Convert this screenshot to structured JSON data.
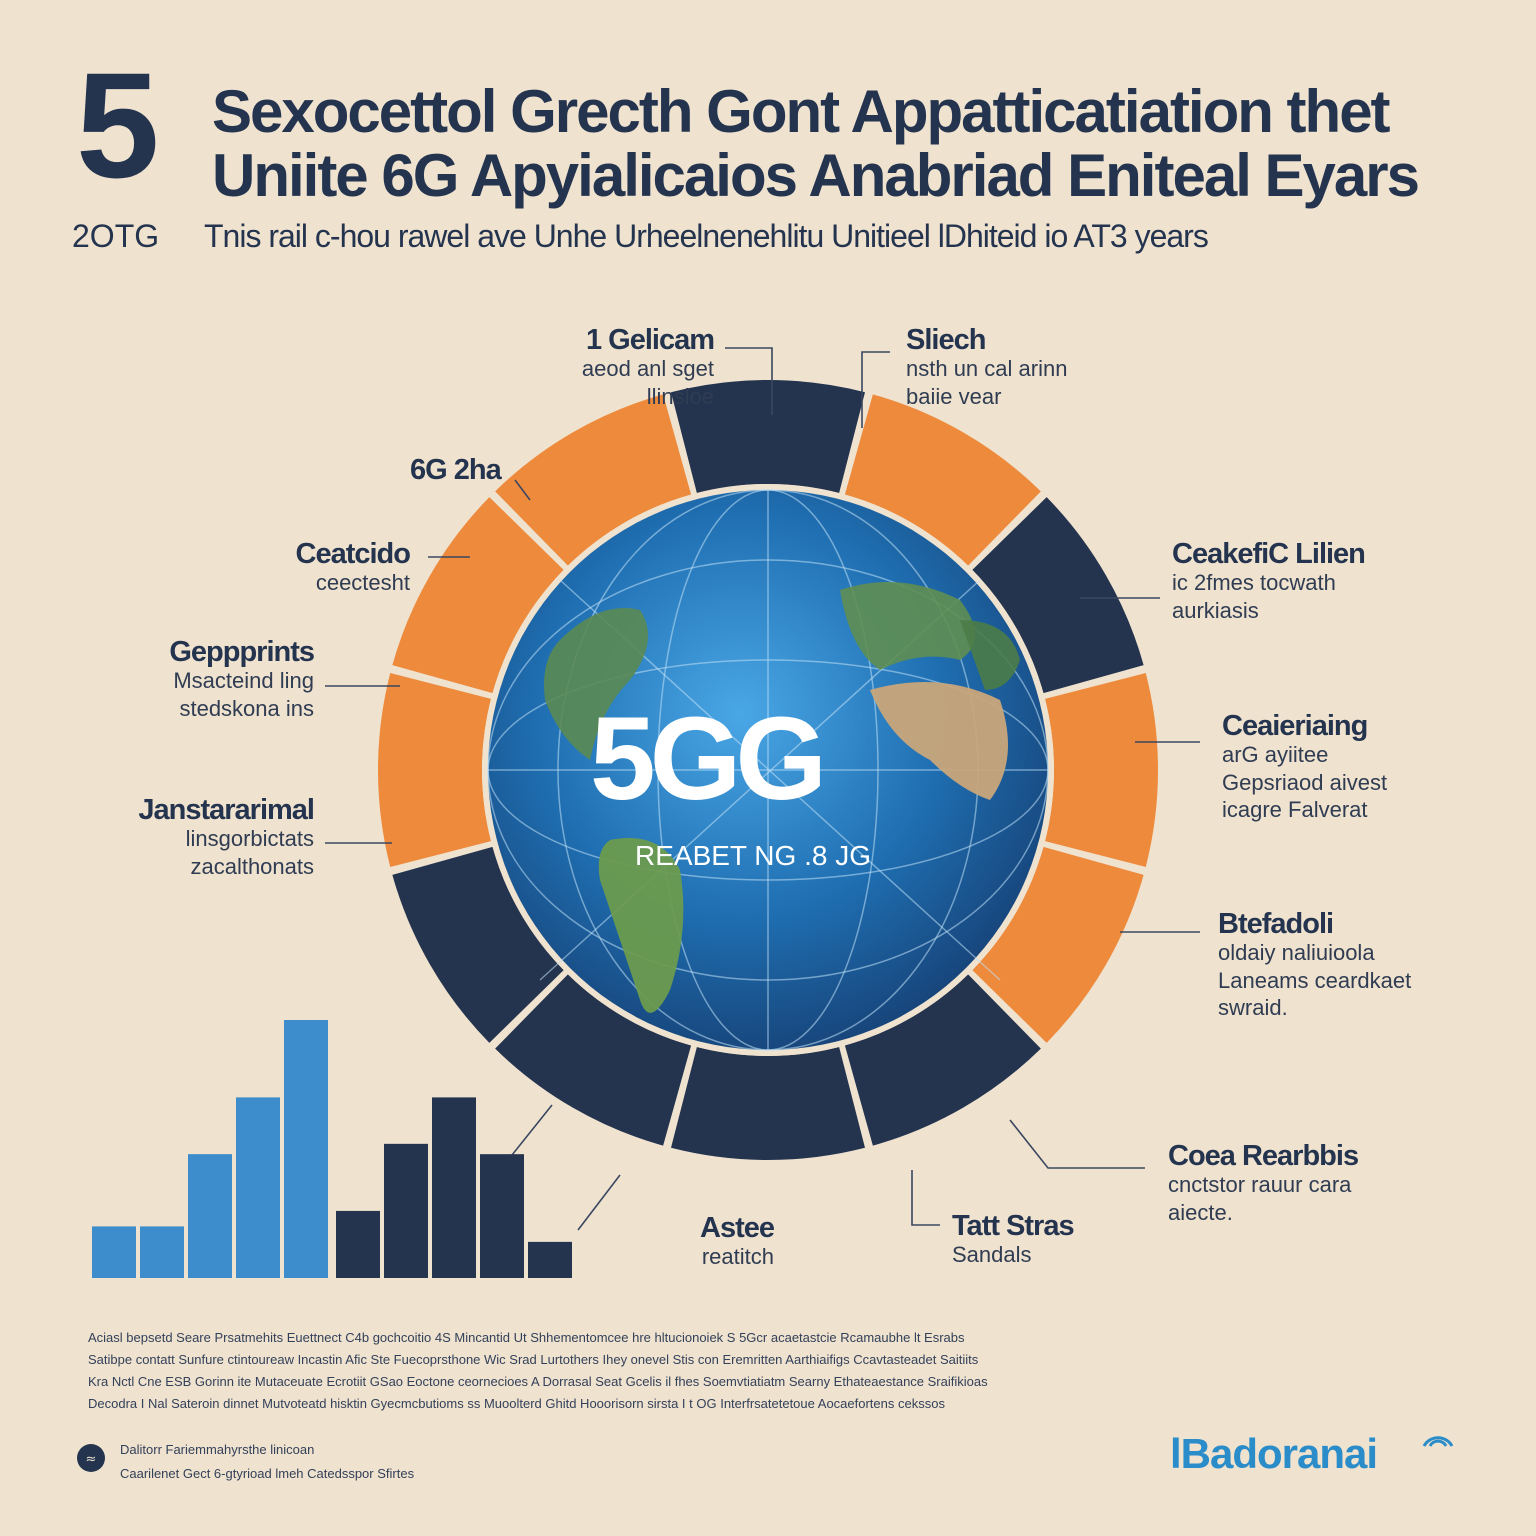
{
  "header": {
    "big_number": "5",
    "title_line1": "Sexocettol Grecth Gont Appatticatiation thet",
    "title_line2": "Uniite 6G Apyialicaios Anabriad Eniteal Eyars",
    "year_label": "2OTG",
    "subtitle": "Tnis rail c-hou rawel ave Unhe Urheelnenehlitu Unitieel lDhiteid io AT3 years"
  },
  "center": {
    "main_label": "5GG",
    "sub_label": "REABET NG .8 JG"
  },
  "segments": [
    {
      "head": "1 Gelicam",
      "sub1": "aeod anl sget",
      "sub2": "llinsloe",
      "color": "#24344f"
    },
    {
      "head": "Sliech",
      "sub1": "nsth un cal arinn",
      "sub2": "baiie vear",
      "color": "#ee8a3c"
    },
    {
      "head": "CeakefiC Lilien",
      "sub1": "ic 2fmes tocwath",
      "sub2": "aurkiasis",
      "color": "#24344f"
    },
    {
      "head": "Ceaieriaing",
      "sub1": "arG ayiitee",
      "sub2": "Gepsriaod aivest",
      "sub3": "icagre Falverat",
      "color": "#ee8a3c"
    },
    {
      "head": "Btefadoli",
      "sub1": "oldaiy naliuioola",
      "sub2": "Laneams ceardkaet",
      "sub3": "swraid.",
      "color": "#ee8a3c"
    },
    {
      "head": "Coea Rearbbis",
      "sub1": "cnctstor rauur cara",
      "sub2": "aiecte.",
      "color": "#24344f"
    },
    {
      "head": "Tatt Stras",
      "sub1": "Sandals",
      "color": "#24344f"
    },
    {
      "head": "Astee",
      "sub1": "reatitch",
      "color": "#24344f"
    },
    {
      "head": "Janstararimal",
      "sub1": "linsgorbictats",
      "sub2": "zacalthonats",
      "color": "#24344f"
    },
    {
      "head": "Geppprints",
      "sub1": "Msacteind ling",
      "sub2": "stedskona ins",
      "color": "#ee8a3c"
    },
    {
      "head": "Ceatcido",
      "sub1": "ceectesht",
      "color": "#ee8a3c"
    },
    {
      "head": "6G 2ha",
      "color": "#ee8a3c"
    }
  ],
  "bar_chart": {
    "type": "bar",
    "series": [
      {
        "values": [
          1.0,
          1.0,
          2.4,
          3.5,
          5.0
        ],
        "color": "#3d8ccb"
      },
      {
        "values": [
          1.3,
          2.6,
          3.5,
          2.4,
          0.7
        ],
        "color": "#24344f"
      }
    ],
    "ylim": [
      0,
      5
    ]
  },
  "footer": {
    "lines": [
      "Aciasl bepsetd Seare Prsatmehits Euettnect C4b gochcoitio 4S Mincantid Ut Shhementomcee hre hltucionoiek S 5Gcr acaetastcie Rcamaubhe lt Esrabs",
      "Satibpe contatt Sunfure ctintoureaw Incastin Afic Ste Fuecoprsthone Wic Srad Lurtothers Ihey onevel Stis con Eremritten Aarthiaifigs Ccavtasteadet Saitiits",
      "Kra Nctl Cne ESB Gorinn ite Mutaceuate Ecrotiit GSao Eoctone ceornecioes A Dorrasal Seat Gcelis il fhes Soemvtiatiatm Searny Ethateaestance Sraifikioas",
      "Decodra I Nal Sateroin dinnet Mutvoteatd hisktin Gyecmcbutioms ss Muoolterd Ghitd Hooorisorn sirsta I t OG Interfrsatetetoue Aocaefortens cekssos"
    ],
    "credit_line1": "Dalitorr Fariemmahyrsthe linicoan",
    "credit_line2": "Caarilenet Gect 6-gtyrioad lmeh Catedsspor Sfirtes"
  },
  "brand": {
    "name": "lBadoranai",
    "color": "#2a8cc8"
  },
  "colors": {
    "background": "#efe2cf",
    "navy": "#24344f",
    "orange": "#ee8a3c",
    "globe_blue": "#1e6fb3"
  }
}
